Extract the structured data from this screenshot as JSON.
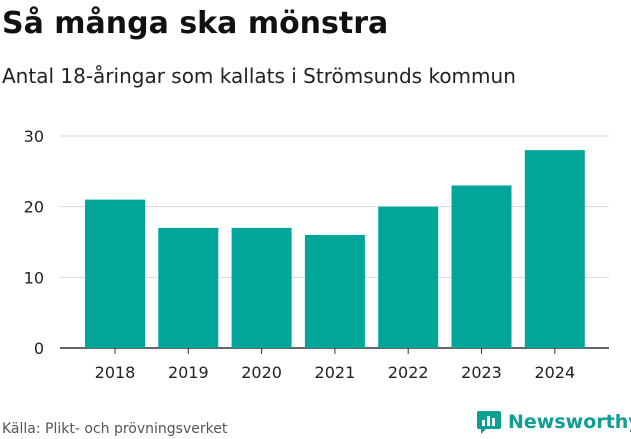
{
  "chart_data": {
    "type": "bar",
    "title": "Så många ska mönstra",
    "subtitle": "Antal 18-åringar som kallats i Strömsunds kommun",
    "categories": [
      "2018",
      "2019",
      "2020",
      "2021",
      "2022",
      "2023",
      "2024"
    ],
    "values": [
      21,
      17,
      17,
      16,
      20,
      23,
      28
    ],
    "xlabel": "",
    "ylabel": "",
    "ylim": [
      0,
      30
    ],
    "yticks": [
      0,
      10,
      20,
      30
    ],
    "ytick_labels": [
      "0",
      "10",
      "20",
      "30"
    ],
    "grid": true,
    "bar_color": "#00a69a",
    "source": "Källa: Plikt- och prövningsverket"
  },
  "brand": {
    "name": "Newsworthy",
    "icon": "newsworthy-chart-icon",
    "color": "#0d9e94"
  }
}
